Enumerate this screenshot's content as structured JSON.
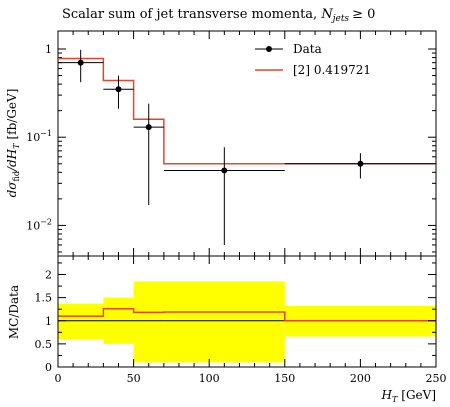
{
  "chart_data": [
    {
      "type": "histogram",
      "title": "Scalar sum of jet transverse momenta, ",
      "title_math": "N",
      "title_math_sub": "jets",
      "title_math_rel": "≥ 0",
      "ylabel": "dσ",
      "ylabel_sub": "fid",
      "ylabel_mid": "/dH",
      "ylabel_sub2": "T",
      "ylabel_unit": "[fb/GeV]",
      "yscale": "log",
      "ylim": [
        0.0045,
        1.6
      ],
      "xlim": [
        0,
        250
      ],
      "y_ticks": [
        {
          "value": 1,
          "base": "1",
          "exp": ""
        },
        {
          "value": 0.1,
          "base": "10",
          "exp": "−1"
        },
        {
          "value": 0.01,
          "base": "10",
          "exp": "−2"
        }
      ],
      "legend_position": "top-right",
      "series": [
        {
          "name": "Data",
          "kind": "points",
          "color": "#000000",
          "points": [
            {
              "x": 15,
              "xlo": 0,
              "xhi": 30,
              "y": 0.7,
              "ylo": 0.42,
              "yhi": 0.98
            },
            {
              "x": 40,
              "xlo": 30,
              "xhi": 50,
              "y": 0.35,
              "ylo": 0.21,
              "yhi": 0.5
            },
            {
              "x": 60,
              "xlo": 50,
              "xhi": 70,
              "y": 0.13,
              "ylo": 0.017,
              "yhi": 0.24
            },
            {
              "x": 110,
              "xlo": 70,
              "xhi": 150,
              "y": 0.042,
              "ylo": 0.006,
              "yhi": 0.077
            },
            {
              "x": 200,
              "xlo": 150,
              "xhi": 250,
              "y": 0.05,
              "ylo": 0.034,
              "yhi": 0.066
            }
          ]
        },
        {
          "name": "[2] 0.419721",
          "kind": "step",
          "color": "#e8432b",
          "bins": [
            {
              "xlo": 0,
              "xhi": 30,
              "y": 0.78
            },
            {
              "xlo": 30,
              "xhi": 50,
              "y": 0.44
            },
            {
              "xlo": 50,
              "xhi": 70,
              "y": 0.16
            },
            {
              "xlo": 70,
              "xhi": 150,
              "y": 0.05
            },
            {
              "xlo": 150,
              "xhi": 250,
              "y": 0.05
            }
          ]
        }
      ]
    },
    {
      "type": "ratio",
      "ylabel": "MC/Data",
      "xlabel_main": "H",
      "xlabel_sub": "T",
      "xlabel_unit": "[GeV]",
      "xlim": [
        0,
        250
      ],
      "ylim": [
        0,
        2.4
      ],
      "y_ticks": [
        "0",
        "0.5",
        "1",
        "1.5",
        "2"
      ],
      "x_ticks": [
        "0",
        "50",
        "100",
        "150",
        "200",
        "250"
      ],
      "band_color": "#ffff00",
      "line_color": "#e8432b",
      "bins": [
        {
          "xlo": 0,
          "xhi": 30,
          "ratio": 1.1,
          "band_lo": 0.6,
          "band_hi": 1.37
        },
        {
          "xlo": 30,
          "xhi": 50,
          "ratio": 1.26,
          "band_lo": 0.5,
          "band_hi": 1.5
        },
        {
          "xlo": 50,
          "xhi": 70,
          "ratio": 1.18,
          "band_lo": 0.1,
          "band_hi": 1.85
        },
        {
          "xlo": 70,
          "xhi": 150,
          "ratio": 1.19,
          "band_lo": 0.1,
          "band_hi": 1.85
        },
        {
          "xlo": 150,
          "xhi": 250,
          "ratio": 1.0,
          "band_lo": 0.66,
          "band_hi": 1.32
        }
      ]
    }
  ]
}
